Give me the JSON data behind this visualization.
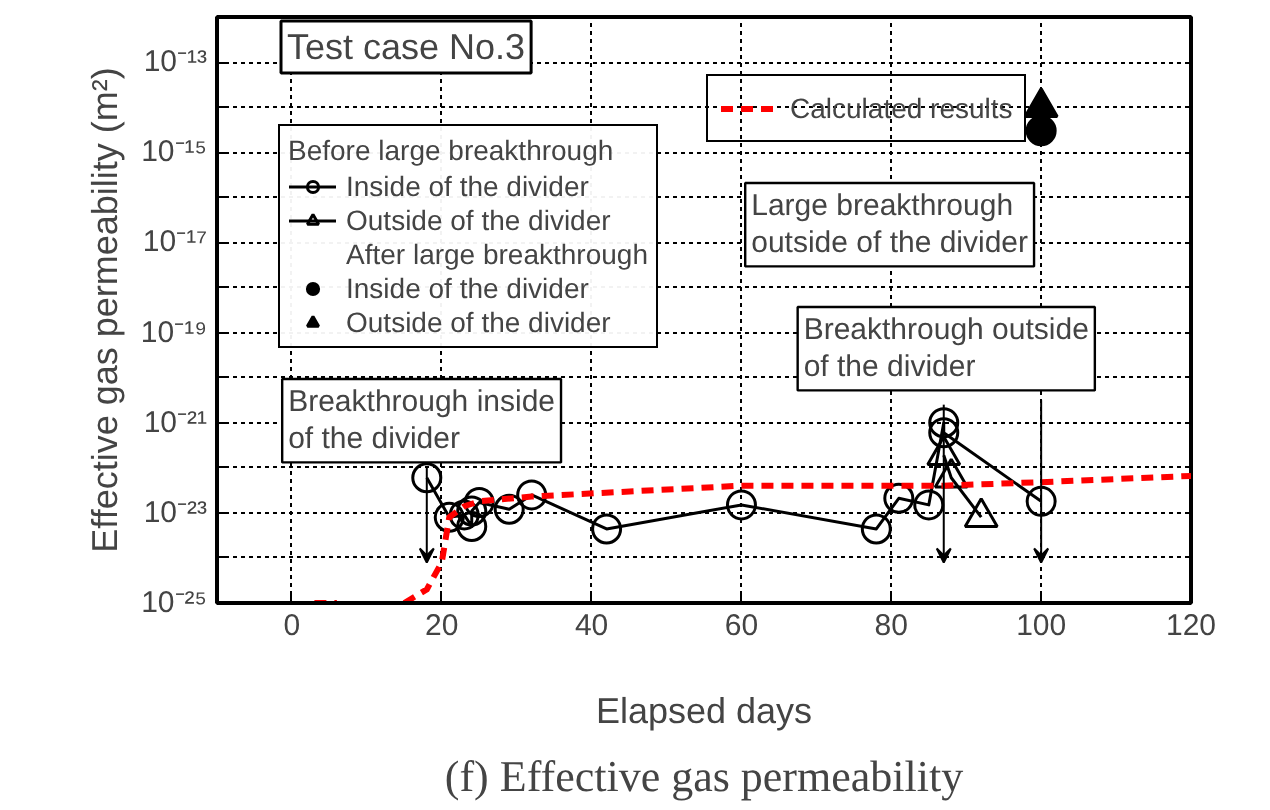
{
  "chart_data": {
    "type": "line",
    "title": "Test case No.3",
    "xlabel": "Elapsed days",
    "ylabel": "Effective gas permeability (m²)",
    "log": "y",
    "grid": true,
    "legend": "top left",
    "legend_title": "Before large breakthrough",
    "xlim": [
      -10,
      120
    ],
    "xticks": [
      0,
      20,
      40,
      60,
      80,
      100,
      120
    ],
    "ylim": [
      1e-25,
      1e-12
    ],
    "yticks": [
      {
        "value": 1e-25,
        "label": "10⁻²⁵"
      },
      {
        "value": 1e-24,
        "label": null
      },
      {
        "value": 1e-23,
        "label": "10⁻²³"
      },
      {
        "value": 1e-22,
        "label": null
      },
      {
        "value": 1e-21,
        "label": "10⁻²¹"
      },
      {
        "value": 1e-20,
        "label": null
      },
      {
        "value": 1e-19,
        "label": "10⁻¹⁹"
      },
      {
        "value": 1e-18,
        "label": null
      },
      {
        "value": 1e-17,
        "label": "10⁻¹⁷"
      },
      {
        "value": 1e-16,
        "label": null
      },
      {
        "value": 1e-15,
        "label": "10⁻¹⁵"
      },
      {
        "value": 1e-14,
        "label": null
      },
      {
        "value": 1e-13,
        "label": "10⁻¹³"
      },
      {
        "value": 1e-12,
        "label": null
      }
    ],
    "series": [
      {
        "name": "Inside of the divider",
        "marker": "circle",
        "color": "#000000",
        "x": [
          18,
          21,
          23,
          24,
          24,
          25,
          29,
          32,
          42,
          60,
          78,
          81,
          85,
          87,
          87,
          100
        ],
        "values": [
          6e-23,
          8e-24,
          9e-24,
          5e-24,
          1.1e-23,
          1.7e-23,
          1.2e-23,
          2.5e-23,
          4.4e-24,
          1.5e-23,
          4.4e-24,
          2.1e-23,
          1.5e-23,
          1e-21,
          6e-22,
          1.8e-23
        ]
      },
      {
        "name": "Outside of the divider",
        "marker": "triangle",
        "color": "#000000",
        "x": [
          87,
          88,
          92
        ],
        "values": [
          1.9e-22,
          6e-23,
          8e-24
        ]
      },
      {
        "name": "Inside of the divider",
        "type": "scatter",
        "marker": "circle",
        "color": "#000000",
        "x": [
          100
        ],
        "values": [
          3e-15
        ]
      },
      {
        "name": "Outside of the divider",
        "type": "scatter",
        "marker": "triangle",
        "color": "#000000",
        "x": [
          100
        ],
        "values": [
          1e-14
        ]
      },
      {
        "name": "Calculated results",
        "marker": "none",
        "line_style": "dashed",
        "color": "#ff0000",
        "x": [
          3,
          6,
          10,
          15,
          18,
          20,
          21,
          23,
          25,
          32,
          60,
          87,
          100,
          120
        ],
        "values": [
          1e-25,
          1e-25,
          null,
          1e-25,
          2e-25,
          8e-25,
          8e-24,
          1.4e-23,
          1.8e-23,
          2.3e-23,
          4e-23,
          4e-23,
          4.8e-23,
          6.6e-23
        ]
      }
    ],
    "annotations": [
      "After large breakthrough",
      "Breakthrough inside\nof the divider",
      "Breakthrough outside\nof the divider",
      "Large breakthrough\noutside of the divider",
      "(f) Effective gas permeability"
    ]
  }
}
